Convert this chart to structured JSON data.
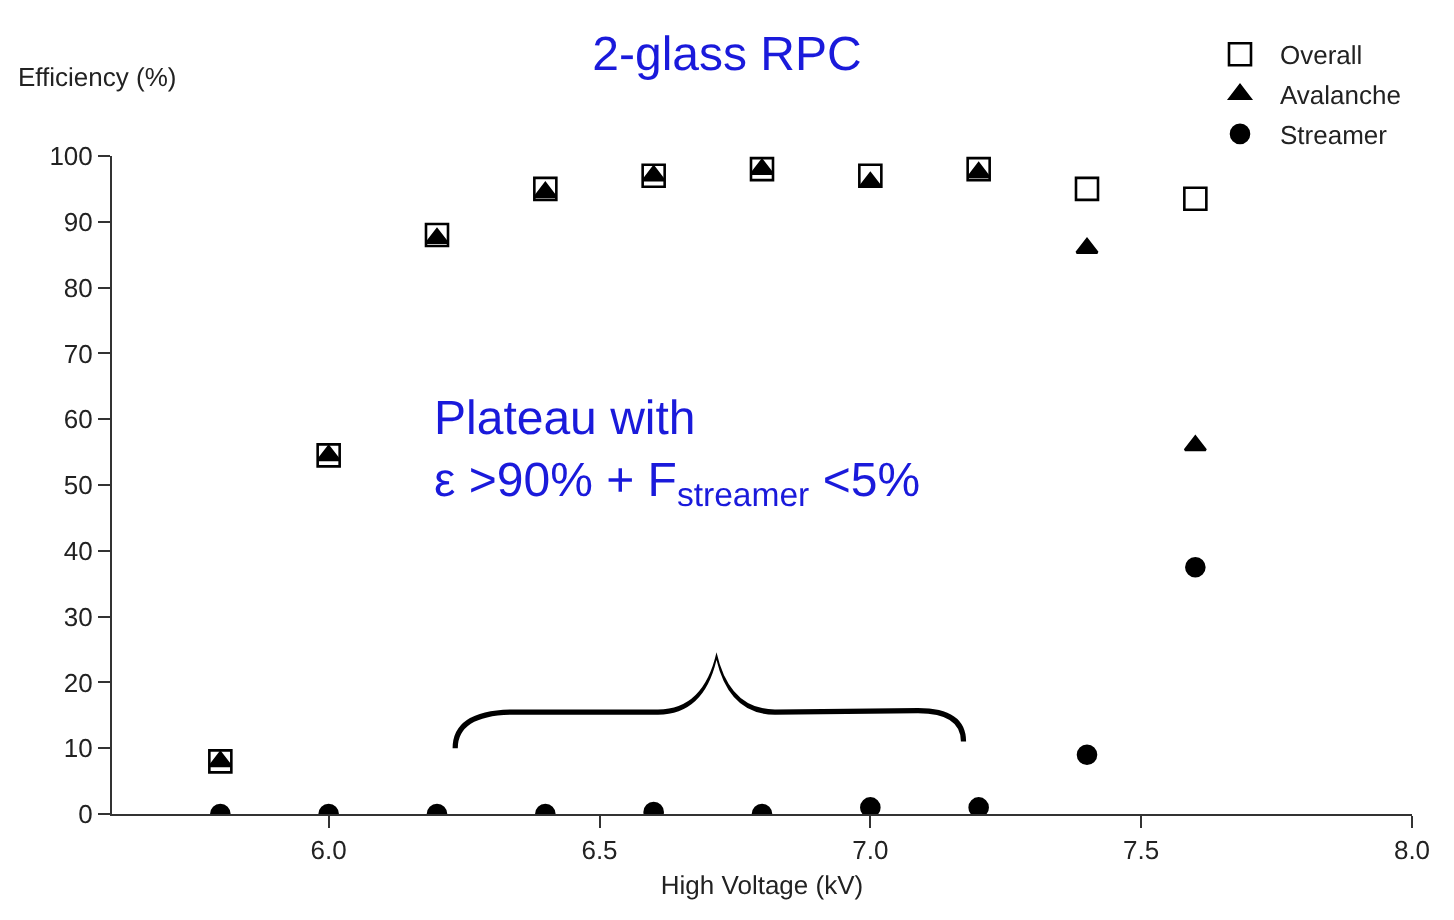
{
  "chart_data": {
    "type": "scatter",
    "title": "2-glass RPC",
    "xlabel": "High Voltage (kV)",
    "ylabel": "Efficiency (%)",
    "x": [
      5.8,
      6.0,
      6.2,
      6.4,
      6.6,
      6.8,
      7.0,
      7.2,
      7.4,
      7.6
    ],
    "series": [
      {
        "name": "Overall",
        "color": "#000000",
        "marker": "square",
        "values": [
          8,
          54.5,
          88,
          95,
          97,
          98,
          97,
          98,
          95,
          93.5
        ]
      },
      {
        "name": "Avalanche",
        "color": "#000000",
        "marker": "triangle",
        "values": [
          8,
          54.5,
          87.5,
          94.5,
          97,
          98,
          96,
          97.5,
          86,
          56
        ]
      },
      {
        "name": "Streamer",
        "color": "#000000",
        "marker": "circle",
        "values": [
          0,
          0,
          0,
          0,
          0.3,
          0,
          1,
          1,
          9,
          37.5
        ]
      }
    ],
    "annotations": [
      "Plateau with\nε >90% + F$_{streamer}$ <5%"
    ],
    "xlim": [
      5.6,
      8.0
    ],
    "xticks": [
      {
        "value": 6,
        "label": "6.0"
      },
      6.5,
      {
        "value": 7,
        "label": "7.0"
      },
      7.5,
      {
        "value": 8,
        "label": "8.0"
      }
    ],
    "ylim": [
      0,
      100
    ],
    "yticks": [
      0,
      10,
      20,
      30,
      40,
      50,
      60,
      70,
      80,
      90,
      100
    ],
    "legend": "top right"
  }
}
